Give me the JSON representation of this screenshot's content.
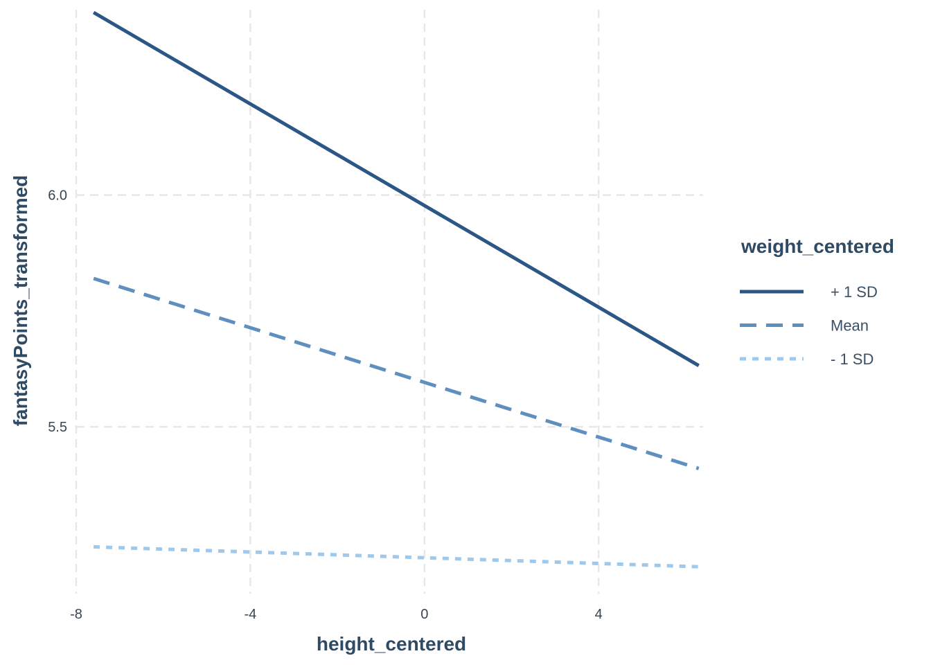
{
  "chart_data": {
    "type": "line",
    "xlabel": "height_centered",
    "ylabel": "fantasyPoints_transformed",
    "xlim": [
      -8,
      6.4
    ],
    "ylim": [
      5.14,
      6.4
    ],
    "x_ticks": [
      -8,
      -4,
      0,
      4
    ],
    "y_ticks": [
      5.5,
      6.0
    ],
    "x_tick_labels": [
      "-8",
      "-4",
      "0",
      "4"
    ],
    "y_tick_labels": [
      "5.5",
      "6.0"
    ],
    "grid": true,
    "legend": {
      "title": "weight_centered",
      "placement": "right"
    },
    "series": [
      {
        "name": "+ 1 SD",
        "x": [
          -7.6,
          6.3
        ],
        "y": [
          6.394,
          5.632
        ],
        "color": "#2b5786",
        "dash": "solid"
      },
      {
        "name": "Mean",
        "x": [
          -7.6,
          6.3
        ],
        "y": [
          5.82,
          5.41
        ],
        "color": "#5f8fbf",
        "dash": "dashed"
      },
      {
        "name": "- 1 SD",
        "x": [
          -7.6,
          6.3
        ],
        "y": [
          5.241,
          5.198
        ],
        "color": "#9dc9ee",
        "dash": "dotted"
      }
    ]
  }
}
